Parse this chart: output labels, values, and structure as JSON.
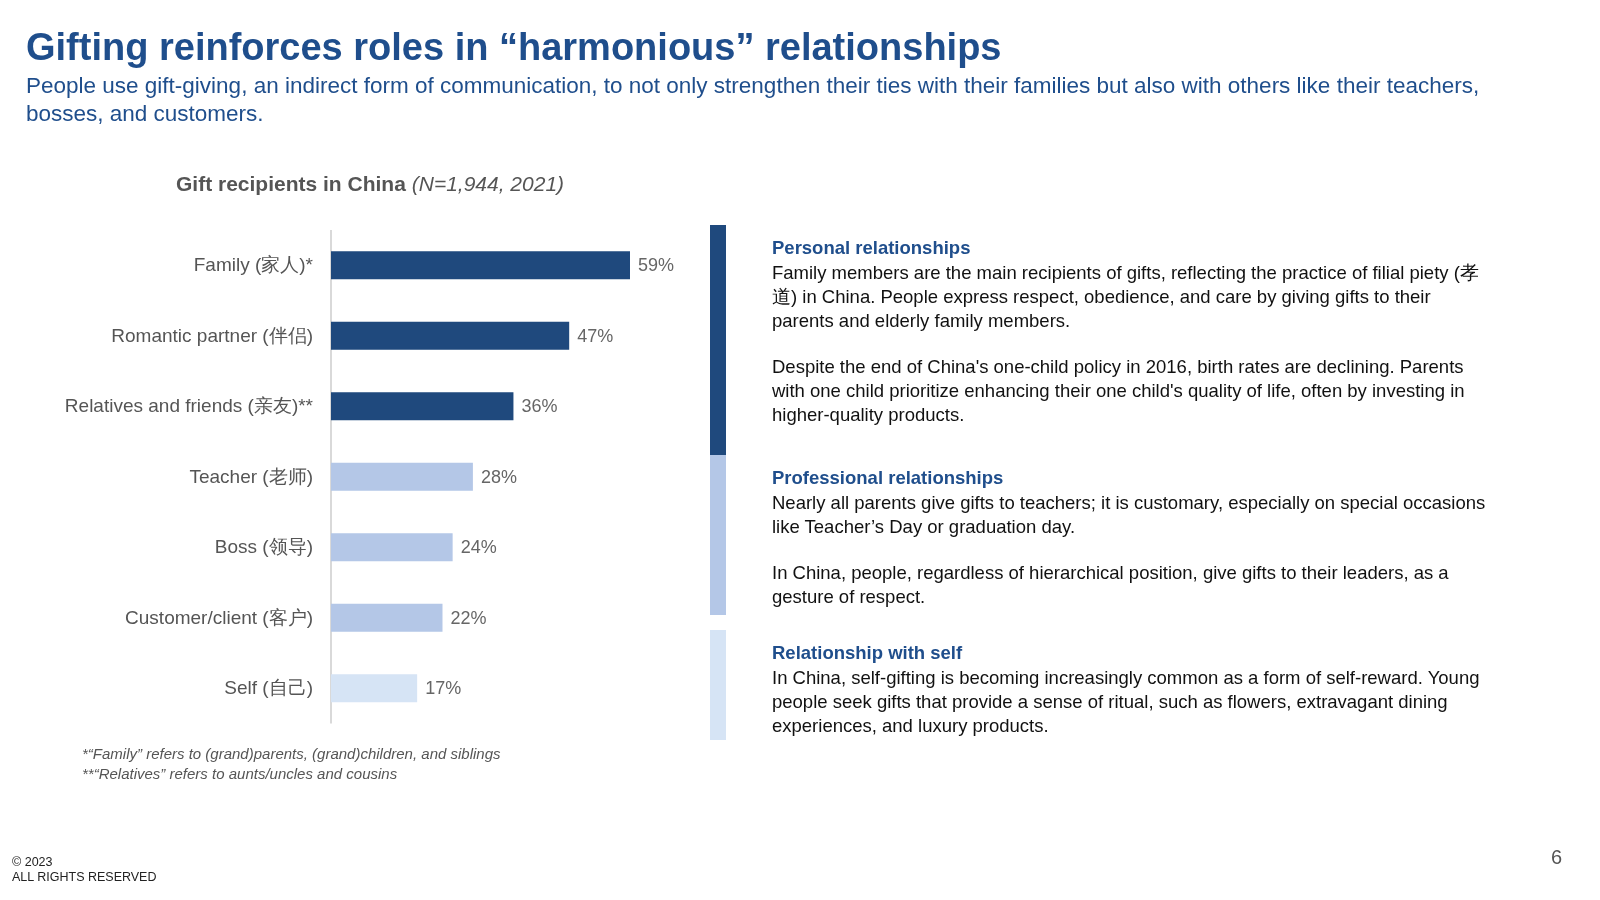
{
  "chart_data": [
    {
      "type": "other",
      "title": "Gifting reinforces roles in “harmonious” relationships",
      "subtitle": "People use gift-giving, an indirect form of communication, to not only strengthen their ties with their families but also with others like their teachers, bosses, and customers.",
      "annotations": [
        "© 2023",
        "ALL RIGHTS RESERVED",
        "6"
      ]
    },
    {
      "type": "bar",
      "orientation": "horizontal",
      "title": "Gift recipients in China",
      "subtitle": "(N=1,944, 2021)",
      "categories": [
        "Family (家人)*",
        "Romantic partner (伴侣)",
        "Relatives and friends (亲友)**",
        "Teacher (老师)",
        "Boss (领导)",
        "Customer/client (客户)",
        "Self (自己)"
      ],
      "values": [
        59,
        47,
        36,
        28,
        24,
        22,
        17
      ],
      "colors": [
        "#1f497d",
        "#1f497d",
        "#1f497d",
        "#b4c7e7",
        "#b4c7e7",
        "#b4c7e7",
        "#d6e4f5"
      ],
      "value_labels": [
        "59%",
        "47%",
        "36%",
        "28%",
        "24%",
        "22%",
        "17%"
      ],
      "annotations": [
        "*“Family” refers to (grand)parents, (grand)children, and siblings",
        "**“Relatives” refers to aunts/uncles and cousins"
      ]
    },
    {
      "type": "other",
      "title": "Personal relationships",
      "color": "#1f497d",
      "annotations": [
        "Family members are the main recipients of gifts, reflecting the practice of filial piety (孝道) in China. People express respect, obedience, and care by giving gifts to their parents and elderly family members.",
        "Despite the end of China's one-child policy in 2016, birth rates are declining. Parents with one child prioritize enhancing their one child's quality of life, often by investing in higher-quality products."
      ]
    },
    {
      "type": "other",
      "title": "Professional relationships",
      "color": "#b4c7e7",
      "annotations": [
        "Nearly all parents give gifts to teachers; it is customary, especially on special occasions like Teacher’s Day or graduation day.",
        "In China, people, regardless of hierarchical position, give gifts to their leaders, as a gesture of respect."
      ]
    },
    {
      "type": "other",
      "title": "Relationship with self",
      "color": "#d6e4f5",
      "annotations": [
        "In China, self-gifting is becoming increasingly common as a form of self-reward. Young people seek gifts that provide a sense of ritual, such as flowers, extravagant dining experiences, and luxury products."
      ]
    }
  ]
}
